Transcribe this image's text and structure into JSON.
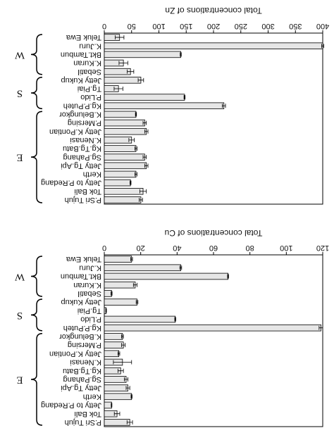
{
  "chart_data": [
    {
      "type": "bar",
      "orientation": "horizontal",
      "title": "Total concentrations of Zn",
      "categories": [
        "Teluk Ewa",
        "K.Juru",
        "Bkt.Tambun",
        "K.Kuran",
        "Sebatil",
        "Jetty Kukup",
        "Tg.Piai",
        "P.Lido",
        "Kg.P.Puteh",
        "K.Belungkor",
        "P.Mersing",
        "Jetty K.Pontian",
        "K.Nenasi",
        "Kg.Tg.Batu",
        "Sg.Pahang",
        "Jetty Tg.Api",
        "Kerth",
        "Jetty to P.Redang",
        "Tok Bali",
        "P.Sri Tujuh"
      ],
      "values": [
        28,
        400,
        140,
        35,
        48,
        67,
        26,
        147,
        219,
        58,
        74,
        77,
        50,
        58,
        74,
        77,
        58,
        48,
        71,
        67
      ],
      "errors": [
        8,
        2,
        1,
        8,
        6,
        5,
        8,
        1,
        3,
        1,
        3,
        3,
        5,
        2,
        3,
        3,
        2,
        1,
        6,
        3
      ],
      "groups": [
        {
          "label": "W",
          "start": 0,
          "end": 4
        },
        {
          "label": "S",
          "start": 5,
          "end": 8
        },
        {
          "label": "E",
          "start": 9,
          "end": 19
        }
      ],
      "xlim": [
        0,
        400
      ],
      "xticks": [
        0,
        50,
        100,
        150,
        200,
        250,
        300,
        350,
        400
      ],
      "color": "#e6e6e6"
    },
    {
      "type": "bar",
      "orientation": "horizontal",
      "title": "Total concentrations of Cu",
      "categories": [
        "Teluk Ewa",
        "K.Juru",
        "Bkt.Tambun",
        "K.Kuran",
        "Sebatil",
        "Jetty Kukup",
        "Tg.Piai",
        "P.Lido",
        "Kg.P.Puteh",
        "K.Belungkor",
        "P.Mersing",
        "Jetty K.Pontian",
        "K.Nenasi",
        "Kg.Tg.Batu",
        "Sg.Pahang",
        "Jetty Tg.Api",
        "Kerth",
        "Jetty to P.Redang",
        "Tok Bali",
        "P.Sri Tujuh"
      ],
      "values": [
        15,
        42,
        68,
        17,
        4,
        18,
        1,
        39,
        119,
        10,
        10.5,
        8,
        10,
        9,
        12,
        13,
        15,
        4,
        7,
        14
      ],
      "errors": [
        0.5,
        0.5,
        0.3,
        1,
        0.3,
        0.5,
        0.2,
        0.3,
        1,
        0.5,
        1,
        0.5,
        5,
        1.5,
        1,
        1,
        0.3,
        0.2,
        1.5,
        1.5
      ],
      "groups": [
        {
          "label": "W",
          "start": 0,
          "end": 4
        },
        {
          "label": "S",
          "start": 5,
          "end": 8
        },
        {
          "label": "E",
          "start": 9,
          "end": 19
        }
      ],
      "xlim": [
        0,
        120
      ],
      "xticks": [
        0,
        20,
        40,
        60,
        80,
        100,
        120
      ],
      "color": "#e6e6e6"
    }
  ]
}
